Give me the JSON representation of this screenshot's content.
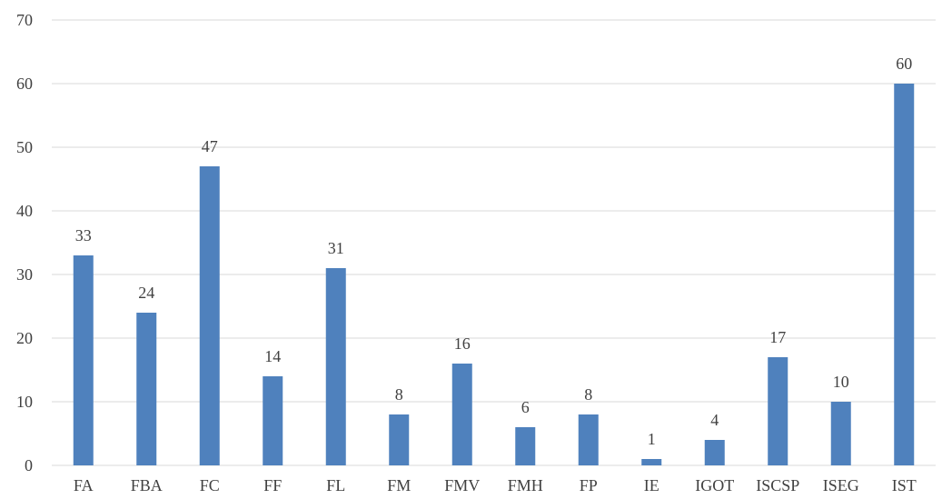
{
  "chart_data": {
    "type": "bar",
    "title": "",
    "xlabel": "",
    "ylabel": "",
    "categories": [
      "FA",
      "FBA",
      "FC",
      "FF",
      "FL",
      "FM",
      "FMV",
      "FMH",
      "FP",
      "IE",
      "IGOT",
      "ISCSP",
      "ISEG",
      "IST"
    ],
    "values": [
      33,
      24,
      47,
      14,
      31,
      8,
      16,
      6,
      8,
      1,
      4,
      17,
      10,
      60
    ],
    "ylim": [
      0,
      70
    ],
    "yticks": [
      0,
      10,
      20,
      30,
      40,
      50,
      60,
      70
    ],
    "grid": true,
    "data_labels": true,
    "bar_color": "#4f81bd"
  }
}
